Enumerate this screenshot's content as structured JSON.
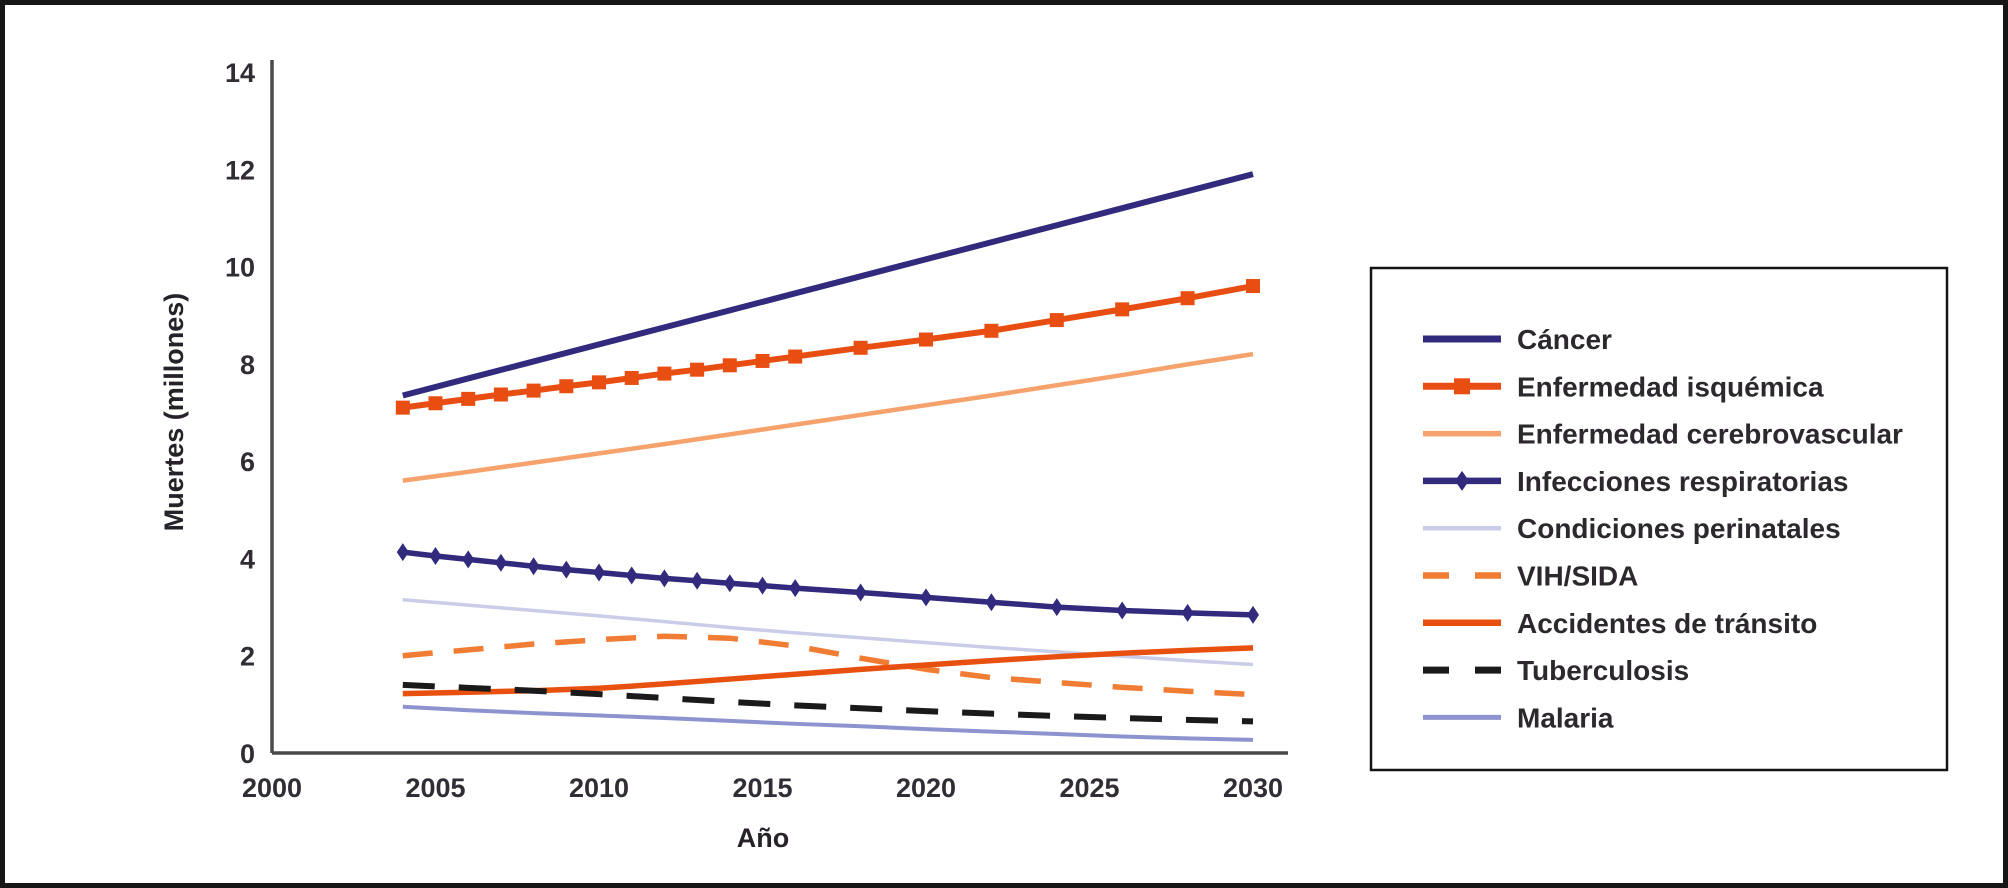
{
  "figure": {
    "background": "#ffffff",
    "frame_color": "#161616",
    "axis_color": "#4a4a4a",
    "legend_border_color": "#141414"
  },
  "chart_data": {
    "type": "line",
    "title": "",
    "xlabel": "Año",
    "ylabel": "Muertes (millones)",
    "xlim": [
      2000,
      2030
    ],
    "ylim": [
      0,
      14
    ],
    "x_ticks": [
      2000,
      2005,
      2010,
      2015,
      2020,
      2025,
      2030
    ],
    "y_ticks": [
      0,
      2,
      4,
      6,
      8,
      10,
      12,
      14
    ],
    "grid": false,
    "legend_position": "right-box",
    "series": [
      {
        "id": "cancer",
        "label": "Cáncer",
        "color": "#312a7d",
        "width": 6,
        "dash": null,
        "marker": null,
        "x": [
          2004,
          2006,
          2008,
          2010,
          2012,
          2014,
          2016,
          2018,
          2020,
          2022,
          2024,
          2026,
          2028,
          2030
        ],
        "y": [
          7.35,
          7.7,
          8.05,
          8.4,
          8.75,
          9.1,
          9.45,
          9.8,
          10.15,
          10.5,
          10.85,
          11.2,
          11.55,
          11.9
        ]
      },
      {
        "id": "enfermedad-isquemica",
        "label": "Enfermedad isquémica",
        "color": "#e84e12",
        "width": 6,
        "dash": null,
        "marker": "square",
        "x": [
          2004,
          2005,
          2006,
          2007,
          2008,
          2009,
          2010,
          2011,
          2012,
          2013,
          2014,
          2015,
          2016,
          2018,
          2020,
          2022,
          2024,
          2026,
          2028,
          2030
        ],
        "y": [
          7.1,
          7.19,
          7.28,
          7.37,
          7.45,
          7.54,
          7.62,
          7.71,
          7.8,
          7.88,
          7.97,
          8.06,
          8.15,
          8.33,
          8.5,
          8.68,
          8.9,
          9.12,
          9.35,
          9.6
        ]
      },
      {
        "id": "enfermedad-cerebrovascular",
        "label": "Enfermedad cerebrovascular",
        "color": "#f6a26d",
        "width": 4.5,
        "dash": null,
        "marker": null,
        "x": [
          2004,
          2006,
          2008,
          2010,
          2012,
          2014,
          2016,
          2018,
          2020,
          2022,
          2024,
          2026,
          2028,
          2030
        ],
        "y": [
          5.6,
          5.78,
          5.97,
          6.16,
          6.35,
          6.55,
          6.75,
          6.95,
          7.15,
          7.35,
          7.56,
          7.77,
          7.99,
          8.2
        ]
      },
      {
        "id": "infecciones-respiratorias",
        "label": "Infecciones respiratorias",
        "color": "#312a7d",
        "width": 5.5,
        "dash": null,
        "marker": "diamond",
        "x": [
          2004,
          2005,
          2006,
          2007,
          2008,
          2009,
          2010,
          2011,
          2012,
          2013,
          2014,
          2015,
          2016,
          2018,
          2020,
          2022,
          2024,
          2026,
          2028,
          2030
        ],
        "y": [
          4.13,
          4.05,
          3.98,
          3.91,
          3.84,
          3.77,
          3.71,
          3.65,
          3.59,
          3.54,
          3.49,
          3.44,
          3.39,
          3.3,
          3.2,
          3.1,
          3.0,
          2.93,
          2.88,
          2.84
        ]
      },
      {
        "id": "condiciones-perinatales",
        "label": "Condiciones perinatales",
        "color": "#c9cde8",
        "width": 3.5,
        "dash": null,
        "marker": null,
        "x": [
          2004,
          2006,
          2008,
          2010,
          2012,
          2014,
          2016,
          2018,
          2020,
          2022,
          2024,
          2026,
          2028,
          2030
        ],
        "y": [
          3.15,
          3.04,
          2.93,
          2.82,
          2.7,
          2.58,
          2.47,
          2.37,
          2.27,
          2.17,
          2.08,
          1.99,
          1.9,
          1.82
        ]
      },
      {
        "id": "vih-sida",
        "label": "VIH/SIDA",
        "color": "#f07d33",
        "width": 5.5,
        "dash": "30 21",
        "marker": null,
        "x": [
          2004,
          2006,
          2008,
          2010,
          2012,
          2014,
          2016,
          2018,
          2020,
          2022,
          2024,
          2026,
          2028,
          2030
        ],
        "y": [
          2.0,
          2.12,
          2.24,
          2.33,
          2.4,
          2.36,
          2.2,
          1.95,
          1.72,
          1.55,
          1.45,
          1.35,
          1.27,
          1.2
        ]
      },
      {
        "id": "accidentes-de-transito",
        "label": "Accidentes de tránsito",
        "color": "#e8500f",
        "width": 5.5,
        "dash": null,
        "marker": null,
        "x": [
          2004,
          2006,
          2008,
          2010,
          2012,
          2014,
          2016,
          2018,
          2020,
          2022,
          2024,
          2026,
          2028,
          2030
        ],
        "y": [
          1.22,
          1.25,
          1.28,
          1.33,
          1.42,
          1.52,
          1.62,
          1.72,
          1.81,
          1.9,
          1.98,
          2.05,
          2.11,
          2.16
        ]
      },
      {
        "id": "tuberculosis",
        "label": "Tuberculosis",
        "color": "#1a1a1a",
        "width": 6,
        "dash": "32 24",
        "marker": null,
        "x": [
          2004,
          2006,
          2008,
          2010,
          2012,
          2014,
          2016,
          2018,
          2020,
          2022,
          2024,
          2026,
          2028,
          2030
        ],
        "y": [
          1.4,
          1.34,
          1.28,
          1.21,
          1.13,
          1.05,
          0.98,
          0.92,
          0.86,
          0.81,
          0.76,
          0.72,
          0.68,
          0.65
        ]
      },
      {
        "id": "malaria",
        "label": "Malaria",
        "color": "#8d93cf",
        "width": 4,
        "dash": null,
        "marker": null,
        "x": [
          2004,
          2006,
          2008,
          2010,
          2012,
          2014,
          2016,
          2018,
          2020,
          2022,
          2024,
          2026,
          2028,
          2030
        ],
        "y": [
          0.95,
          0.88,
          0.82,
          0.77,
          0.72,
          0.66,
          0.6,
          0.55,
          0.49,
          0.44,
          0.39,
          0.34,
          0.3,
          0.27
        ]
      }
    ]
  }
}
